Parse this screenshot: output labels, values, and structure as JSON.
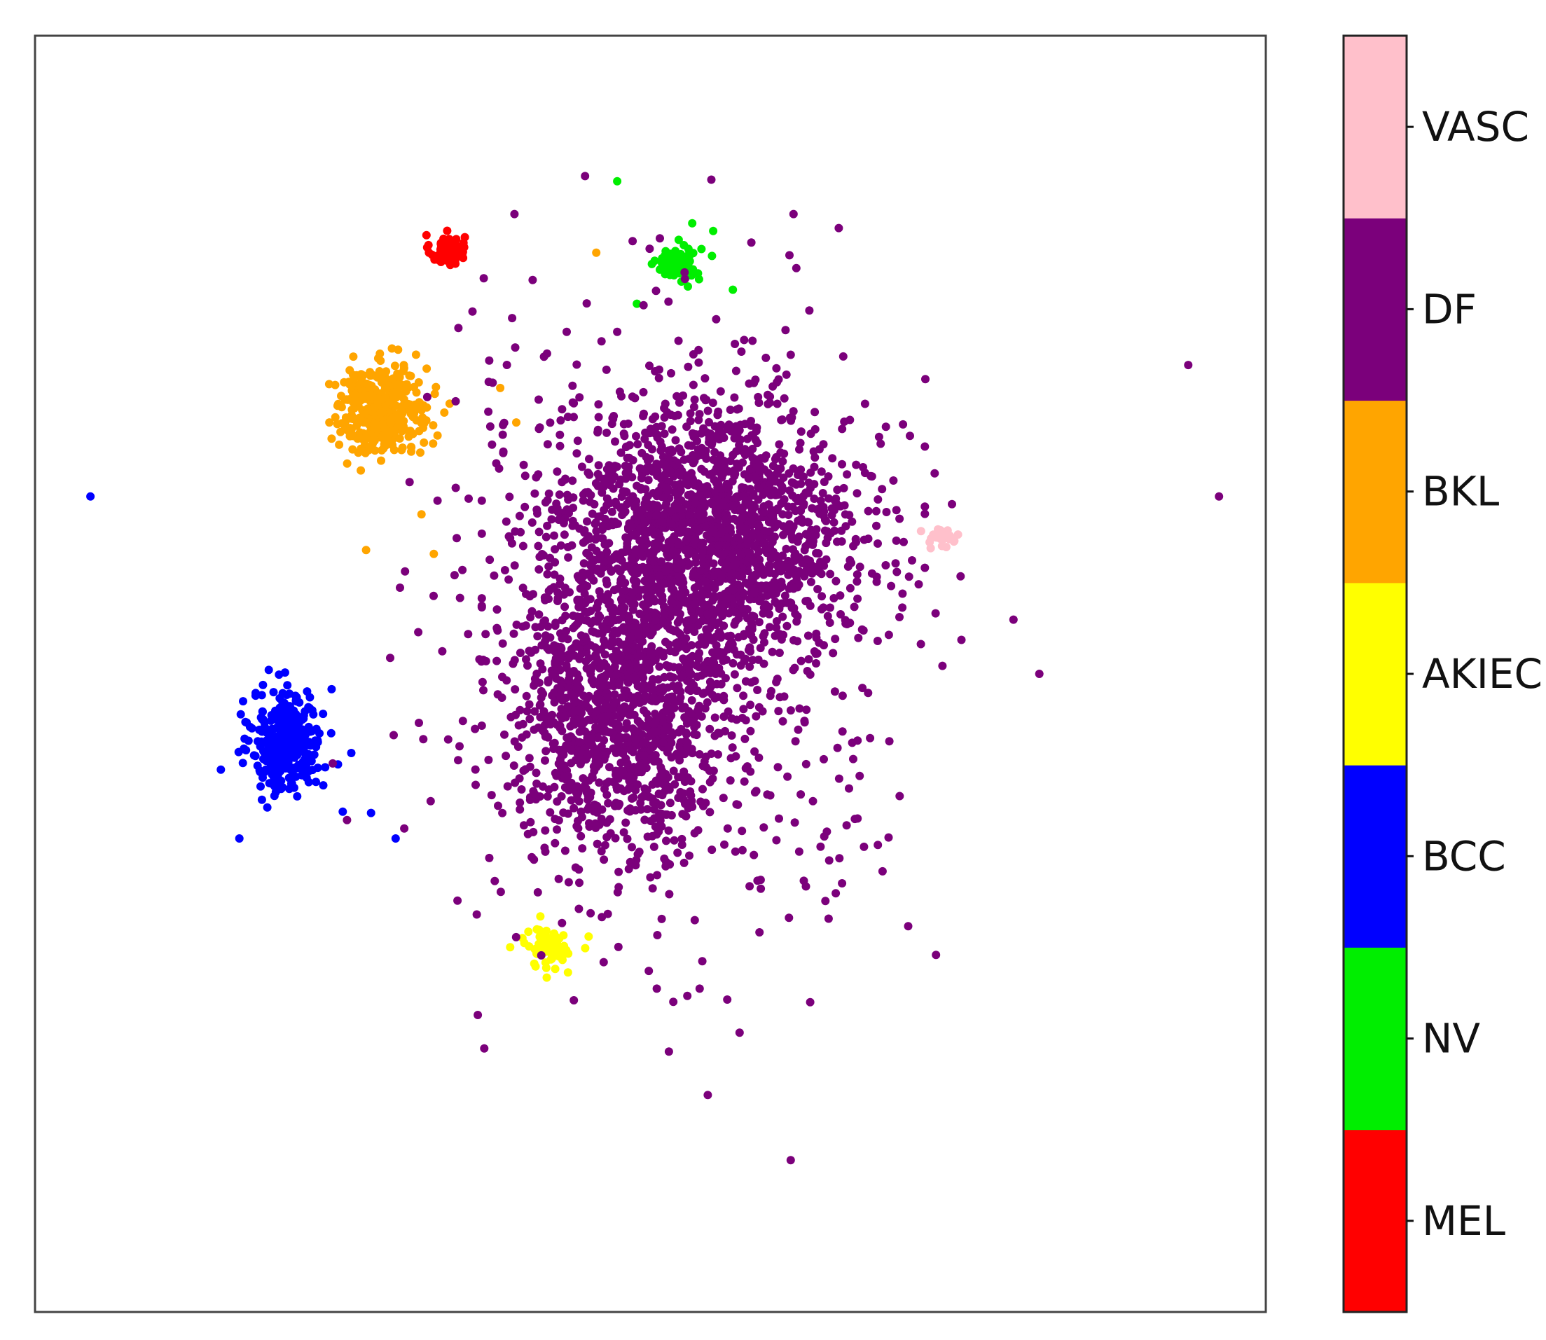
{
  "chart_data": {
    "type": "scatter",
    "title": "",
    "xlabel": "",
    "ylabel": "",
    "xlim": [
      0,
      100
    ],
    "ylim": [
      0,
      100
    ],
    "grid": false,
    "axis_ticks": false,
    "legend": {
      "kind": "colorbar",
      "placement": "right",
      "order_bottom_to_top": [
        "MEL",
        "NV",
        "BCC",
        "AKIEC",
        "BKL",
        "DF",
        "VASC"
      ]
    },
    "series": [
      {
        "name": "MEL",
        "color": "#ff0000",
        "clusters": [
          {
            "cx": 33.5,
            "cy": 83.2,
            "sx": 0.7,
            "sy": 0.6,
            "n": 70
          }
        ],
        "outliers": []
      },
      {
        "name": "NV",
        "color": "#00ee00",
        "clusters": [
          {
            "cx": 52.3,
            "cy": 82.2,
            "sx": 0.9,
            "sy": 0.7,
            "n": 90
          }
        ],
        "outliers": [
          [
            47.3,
            88.6
          ],
          [
            55.1,
            84.7
          ],
          [
            53.4,
            85.3
          ],
          [
            48.9,
            79.0
          ],
          [
            56.7,
            80.1
          ]
        ]
      },
      {
        "name": "BCC",
        "color": "#0000ff",
        "clusters": [
          {
            "cx": 20.5,
            "cy": 44.7,
            "sx": 1.4,
            "sy": 2.0,
            "n": 350
          }
        ],
        "outliers": [
          [
            4.5,
            63.9
          ],
          [
            15.1,
            42.5
          ],
          [
            16.6,
            37.1
          ],
          [
            24.1,
            48.8
          ],
          [
            25.7,
            43.8
          ],
          [
            25.0,
            39.2
          ],
          [
            27.3,
            39.1
          ],
          [
            29.3,
            37.1
          ]
        ]
      },
      {
        "name": "AKIEC",
        "color": "#ffff00",
        "clusters": [
          {
            "cx": 41.8,
            "cy": 28.6,
            "sx": 1.1,
            "sy": 0.8,
            "n": 70
          }
        ],
        "outliers": [
          [
            39.6,
            29.3
          ],
          [
            43.3,
            26.6
          ]
        ]
      },
      {
        "name": "BKL",
        "color": "#ffa500",
        "clusters": [
          {
            "cx": 28.3,
            "cy": 70.7,
            "sx": 1.9,
            "sy": 1.7,
            "n": 350
          }
        ],
        "outliers": [
          [
            45.6,
            83.0
          ],
          [
            37.8,
            72.4
          ],
          [
            39.1,
            69.7
          ],
          [
            31.4,
            62.5
          ],
          [
            23.9,
            72.7
          ],
          [
            26.9,
            59.7
          ],
          [
            32.4,
            59.4
          ],
          [
            29.5,
            75.4
          ]
        ]
      },
      {
        "name": "DF",
        "color": "#7b007b",
        "clusters": [
          {
            "cx": 54.3,
            "cy": 60.5,
            "sx": 6.0,
            "sy": 5.2,
            "n": 1800
          },
          {
            "cx": 47.5,
            "cy": 47.0,
            "sx": 4.0,
            "sy": 4.8,
            "n": 1000
          },
          {
            "cx": 51.0,
            "cy": 53.0,
            "sx": 9.5,
            "sy": 12.0,
            "n": 700
          }
        ],
        "outliers": [
          [
            58.2,
            83.8
          ],
          [
            61.3,
            82.8
          ],
          [
            34.4,
            77.1
          ],
          [
            43.2,
            76.8
          ],
          [
            47.3,
            76.8
          ],
          [
            41.6,
            75.1
          ],
          [
            61.4,
            75.0
          ],
          [
            93.7,
            74.2
          ],
          [
            96.2,
            63.9
          ],
          [
            74.5,
            63.3
          ],
          [
            72.3,
            63.1
          ],
          [
            81.6,
            50.0
          ],
          [
            37.3,
            57.7
          ],
          [
            37.6,
            48.4
          ],
          [
            35.8,
            41.3
          ],
          [
            48.8,
            35.0
          ],
          [
            42.4,
            37.8
          ],
          [
            53.6,
            30.7
          ],
          [
            47.4,
            28.6
          ],
          [
            58.7,
            33.8
          ],
          [
            61.4,
            11.9
          ],
          [
            66.4,
            44.6
          ],
          [
            67.0,
            42.0
          ],
          [
            65.2,
            44.2
          ],
          [
            37.1,
            40.5
          ]
        ]
      },
      {
        "name": "VASC",
        "color": "#ffc0cb",
        "clusters": [
          {
            "cx": 73.6,
            "cy": 60.8,
            "sx": 0.6,
            "sy": 0.4,
            "n": 25
          }
        ],
        "outliers": []
      }
    ]
  }
}
